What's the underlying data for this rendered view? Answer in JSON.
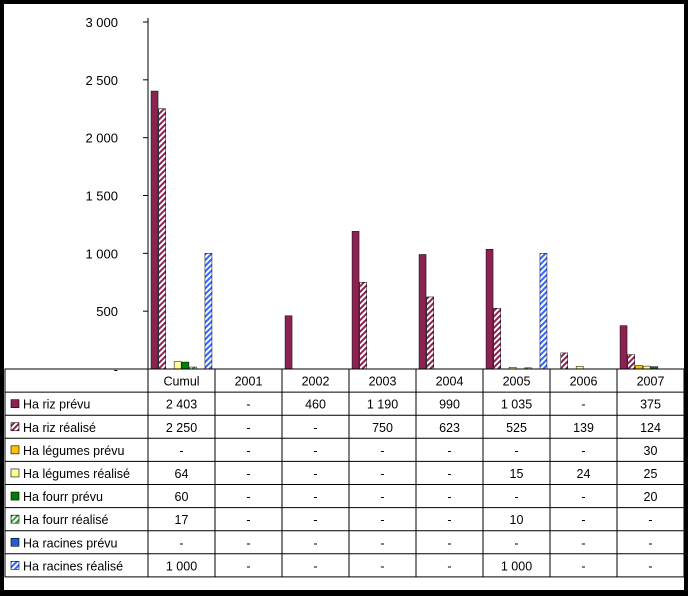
{
  "chart_data": {
    "type": "bar",
    "categories": [
      "Cumul",
      "2001",
      "2002",
      "2003",
      "2004",
      "2005",
      "2006",
      "2007"
    ],
    "ylim": [
      0,
      3000
    ],
    "yticks": [
      {
        "value": 3000,
        "label": "3 000"
      },
      {
        "value": 2500,
        "label": "2 500"
      },
      {
        "value": 2000,
        "label": "2 000"
      },
      {
        "value": 1500,
        "label": "1 500"
      },
      {
        "value": 1000,
        "label": "1 000"
      },
      {
        "value": 500,
        "label": "500"
      },
      {
        "value": 0,
        "label": "-"
      }
    ],
    "legend_placement": "data-table-left",
    "series": [
      {
        "name": "Ha riz prévu",
        "color": "#8B2252",
        "pattern": "solid",
        "values": [
          2403,
          null,
          460,
          1190,
          990,
          1035,
          null,
          375
        ],
        "labels": [
          "2 403",
          "-",
          "460",
          "1 190",
          "990",
          "1 035",
          "-",
          "375"
        ]
      },
      {
        "name": "Ha riz réalisé",
        "color": "#8B2252",
        "pattern": "hatch",
        "values": [
          2250,
          null,
          null,
          750,
          623,
          525,
          139,
          124
        ],
        "labels": [
          "2 250",
          "-",
          "-",
          "750",
          "623",
          "525",
          "139",
          "124"
        ]
      },
      {
        "name": "Ha légumes prévu",
        "color": "#FFC000",
        "pattern": "solid",
        "values": [
          null,
          null,
          null,
          null,
          null,
          null,
          null,
          30
        ],
        "labels": [
          "-",
          "-",
          "-",
          "-",
          "-",
          "-",
          "-",
          "30"
        ]
      },
      {
        "name": "Ha légumes réalisé",
        "color": "#FFFF99",
        "pattern": "solid",
        "values": [
          64,
          null,
          null,
          null,
          null,
          15,
          24,
          25
        ],
        "labels": [
          "64",
          "-",
          "-",
          "-",
          "-",
          "15",
          "24",
          "25"
        ]
      },
      {
        "name": "Ha fourr prévu",
        "color": "#008000",
        "pattern": "solid",
        "values": [
          60,
          null,
          null,
          null,
          null,
          null,
          null,
          20
        ],
        "labels": [
          "60",
          "-",
          "-",
          "-",
          "-",
          "-",
          "-",
          "20"
        ]
      },
      {
        "name": "Ha fourr réalisé",
        "color": "#33AA33",
        "pattern": "hatch",
        "values": [
          17,
          null,
          null,
          null,
          null,
          10,
          null,
          null
        ],
        "labels": [
          "17",
          "-",
          "-",
          "-",
          "-",
          "10",
          "-",
          "-"
        ]
      },
      {
        "name": "Ha racines prévu",
        "color": "#1F5FD0",
        "pattern": "solid",
        "values": [
          null,
          null,
          null,
          null,
          null,
          null,
          null,
          null
        ],
        "labels": [
          "-",
          "-",
          "-",
          "-",
          "-",
          "-",
          "-",
          "-"
        ]
      },
      {
        "name": "Ha racines réalisé",
        "color": "#3366FF",
        "pattern": "hatch",
        "values": [
          1000,
          null,
          null,
          null,
          null,
          1000,
          null,
          null
        ],
        "labels": [
          "1 000",
          "-",
          "-",
          "-",
          "-",
          "1 000",
          "-",
          "-"
        ]
      }
    ]
  }
}
